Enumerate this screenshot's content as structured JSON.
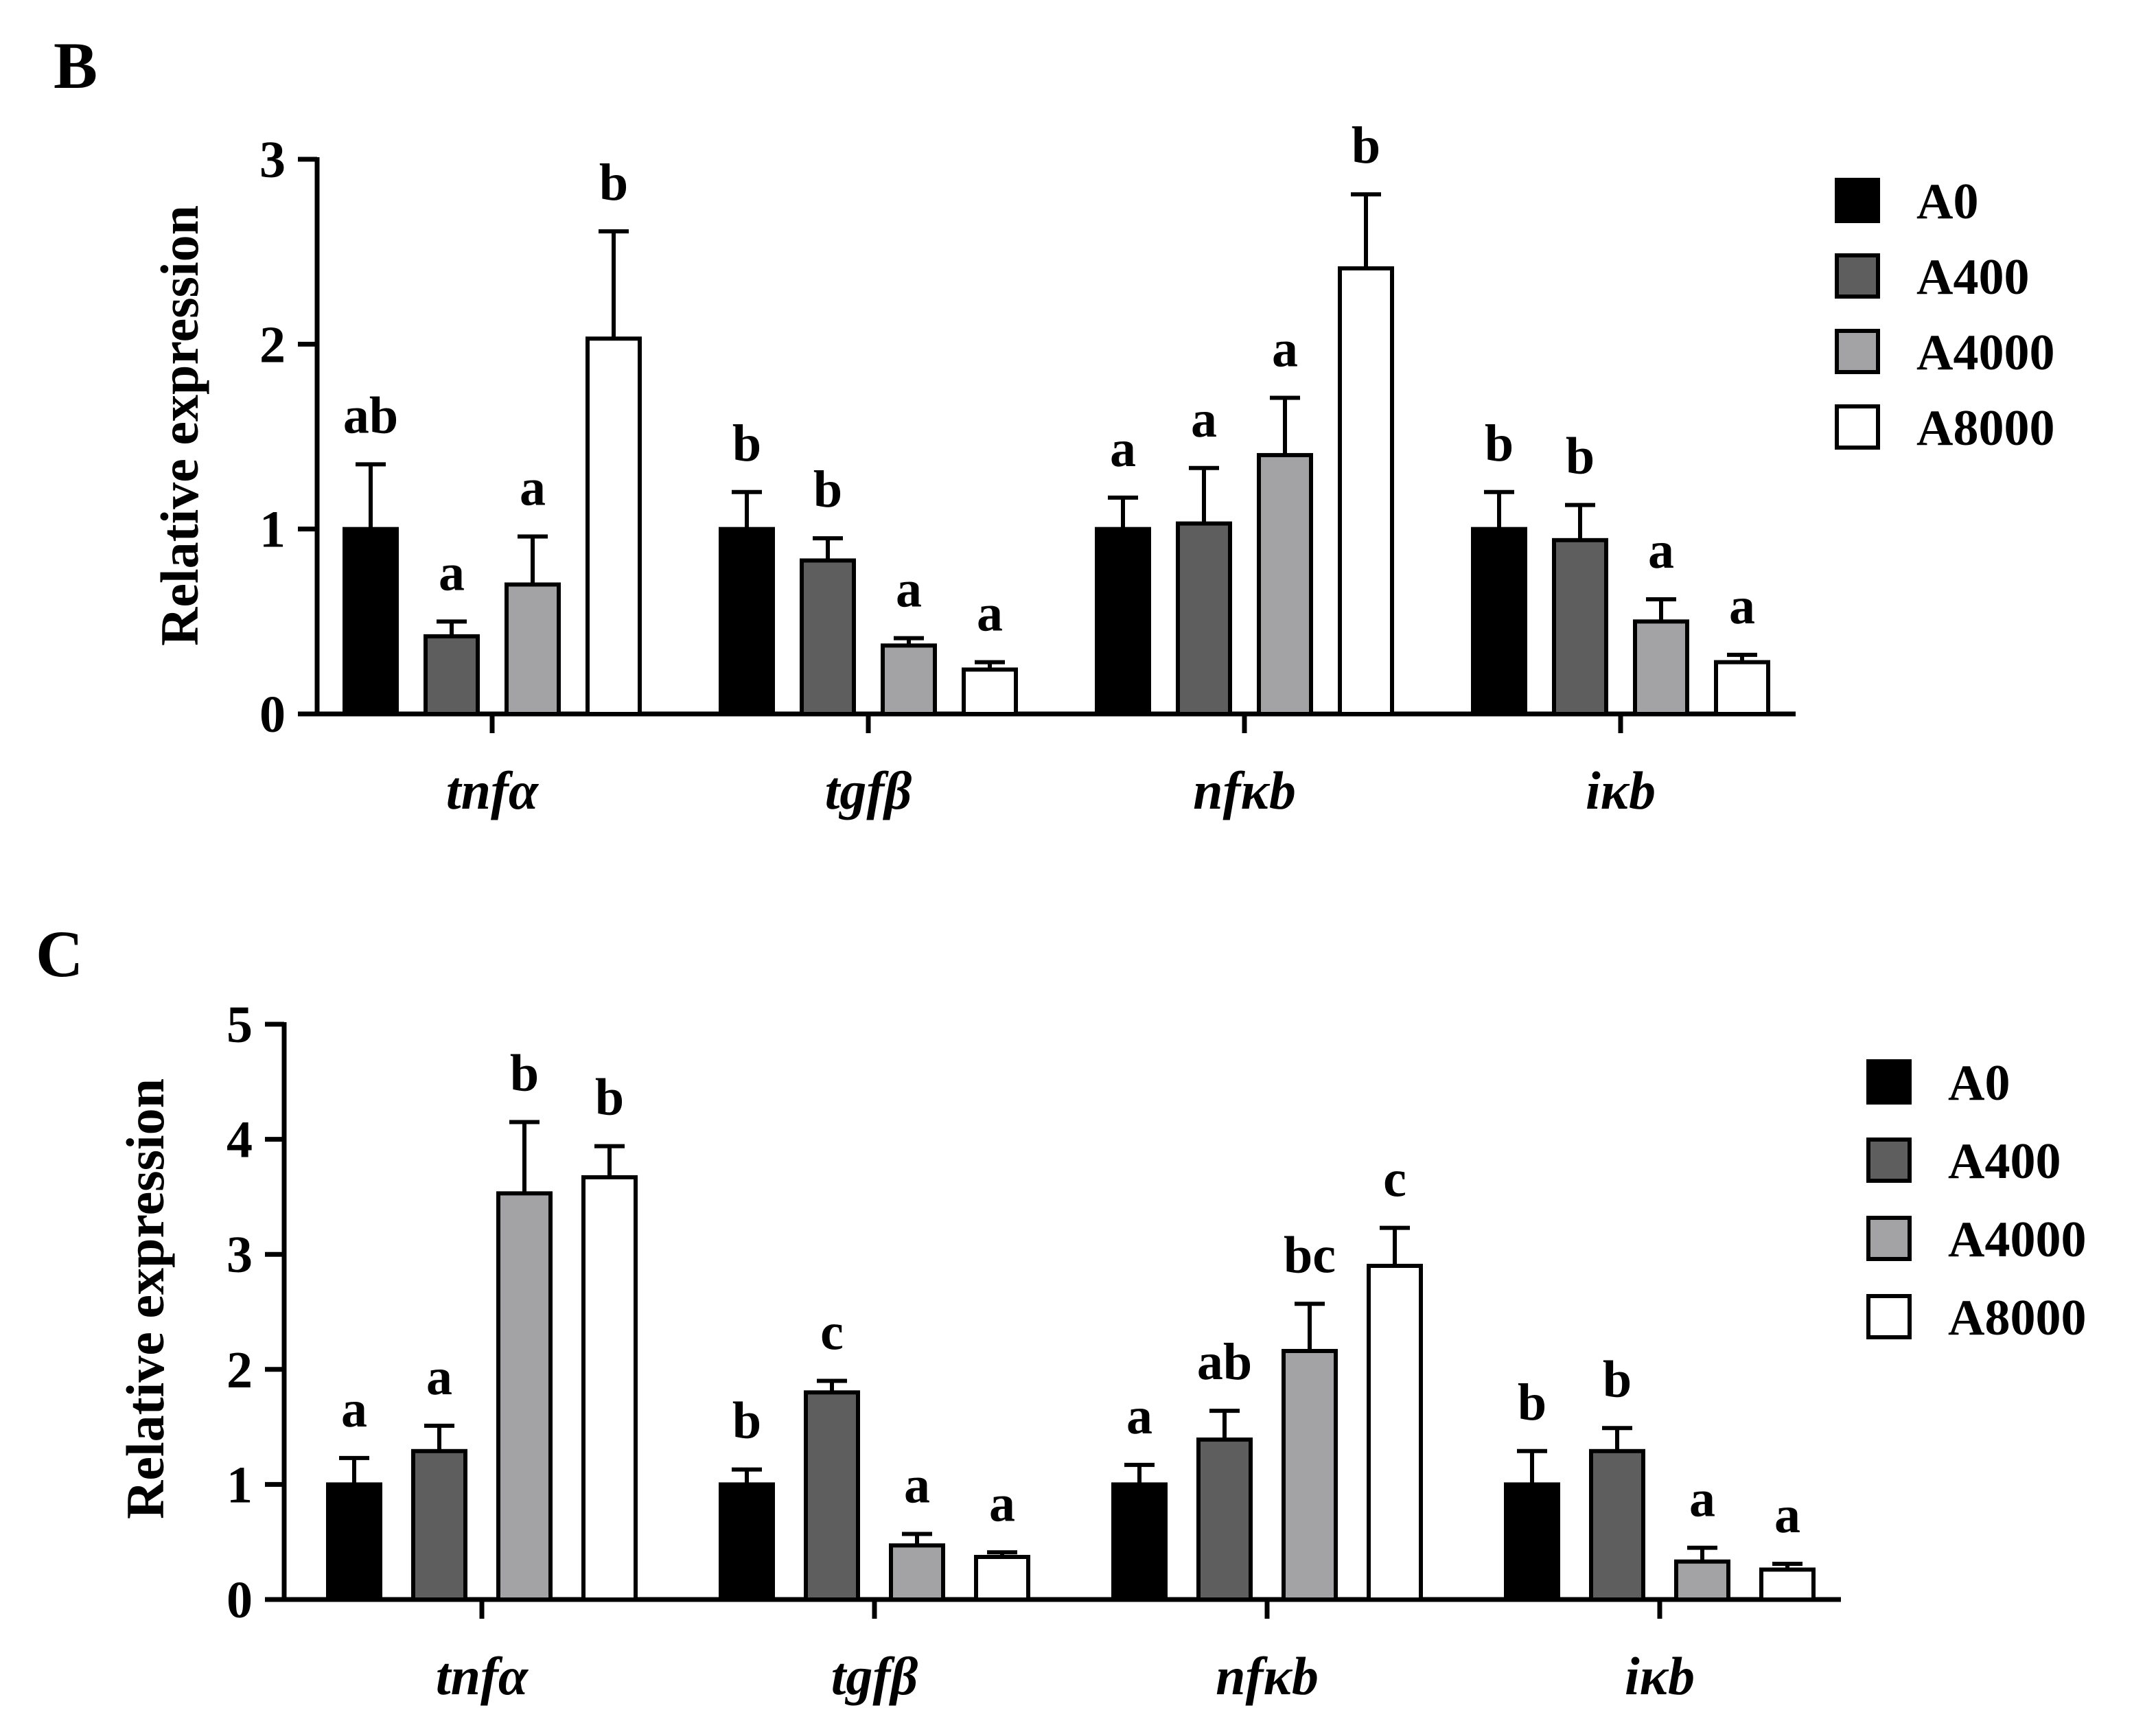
{
  "chart_data": [
    {
      "panel": "B",
      "type": "bar",
      "ylabel": "Relative expression",
      "ylim": [
        0,
        3
      ],
      "yticks": [
        "0",
        "1",
        "2",
        "3"
      ],
      "categories": [
        "tnfα",
        "tgfβ",
        "nfκb",
        "iκb"
      ],
      "series": [
        {
          "name": "A0",
          "color": "#000000",
          "values": [
            1.0,
            1.0,
            1.0,
            1.0
          ],
          "errors": [
            0.35,
            0.2,
            0.17,
            0.2
          ],
          "labels": [
            "ab",
            "b",
            "a",
            "b"
          ]
        },
        {
          "name": "A400",
          "color": "#5e5e5e",
          "values": [
            0.42,
            0.83,
            1.03,
            0.94
          ],
          "errors": [
            0.08,
            0.12,
            0.3,
            0.19
          ],
          "labels": [
            "a",
            "b",
            "a",
            "b"
          ]
        },
        {
          "name": "A4000",
          "color": "#a3a3a6",
          "values": [
            0.7,
            0.37,
            1.4,
            0.5
          ],
          "errors": [
            0.26,
            0.04,
            0.31,
            0.12
          ],
          "labels": [
            "a",
            "a",
            "a",
            "a"
          ]
        },
        {
          "name": "A8000",
          "color": "#ffffff",
          "values": [
            2.03,
            0.24,
            2.41,
            0.28
          ],
          "errors": [
            0.58,
            0.04,
            0.4,
            0.04
          ],
          "labels": [
            "b",
            "a",
            "b",
            "a"
          ]
        }
      ]
    },
    {
      "panel": "C",
      "type": "bar",
      "ylabel": "Relative expression",
      "ylim": [
        0,
        5
      ],
      "yticks": [
        "0",
        "1",
        "2",
        "3",
        "4",
        "5"
      ],
      "categories": [
        "tnfα",
        "tgfβ",
        "nfκb",
        "iκb"
      ],
      "series": [
        {
          "name": "A0",
          "color": "#000000",
          "values": [
            1.0,
            1.0,
            1.0,
            1.0
          ],
          "errors": [
            0.23,
            0.13,
            0.17,
            0.29
          ],
          "labels": [
            "a",
            "b",
            "a",
            "b"
          ]
        },
        {
          "name": "A400",
          "color": "#5e5e5e",
          "values": [
            1.29,
            1.8,
            1.39,
            1.29
          ],
          "errors": [
            0.22,
            0.1,
            0.25,
            0.2
          ],
          "labels": [
            "a",
            "c",
            "ab",
            "b"
          ]
        },
        {
          "name": "A4000",
          "color": "#a3a3a6",
          "values": [
            3.53,
            0.47,
            2.16,
            0.33
          ],
          "errors": [
            0.62,
            0.1,
            0.41,
            0.12
          ],
          "labels": [
            "b",
            "a",
            "bc",
            "a"
          ]
        },
        {
          "name": "A8000",
          "color": "#ffffff",
          "values": [
            3.67,
            0.37,
            2.9,
            0.26
          ],
          "errors": [
            0.27,
            0.04,
            0.33,
            0.05
          ],
          "labels": [
            "b",
            "a",
            "c",
            "a"
          ]
        }
      ]
    }
  ]
}
